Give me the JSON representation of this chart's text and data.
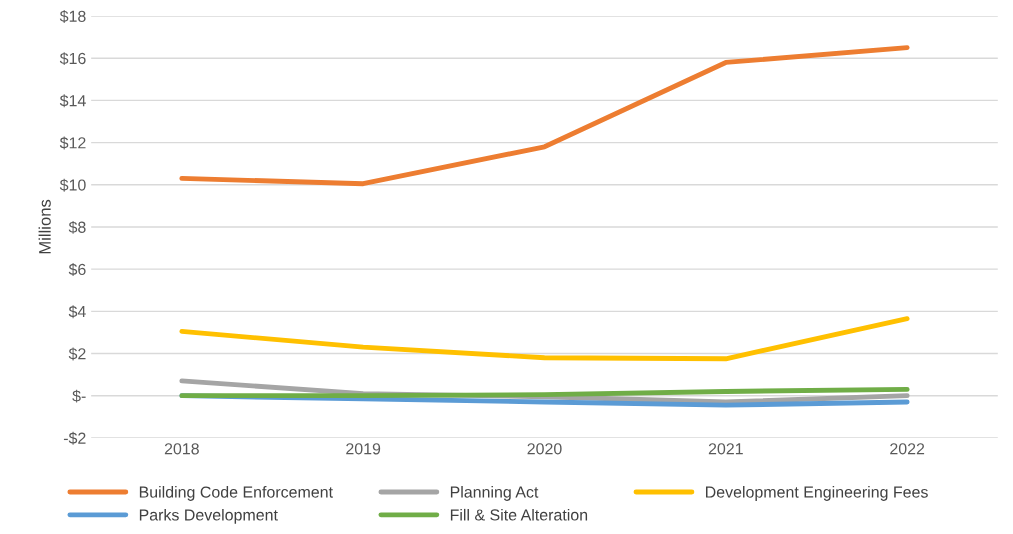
{
  "chart_data": {
    "type": "line",
    "ylabel": "Millions",
    "categories": [
      "2018",
      "2019",
      "2020",
      "2021",
      "2022"
    ],
    "series": [
      {
        "name": "Building Code Enforcement",
        "color": "#ed7d31",
        "values": [
          10.3,
          10.05,
          11.8,
          15.8,
          16.5
        ]
      },
      {
        "name": "Planning Act",
        "color": "#a5a5a5",
        "values": [
          0.7,
          0.1,
          -0.05,
          -0.3,
          0.0
        ]
      },
      {
        "name": "Development Engineering Fees",
        "color": "#ffc000",
        "values": [
          3.05,
          2.3,
          1.8,
          1.75,
          3.65
        ]
      },
      {
        "name": "Parks Development",
        "color": "#5b9bd5",
        "values": [
          0.0,
          -0.15,
          -0.3,
          -0.45,
          -0.3
        ]
      },
      {
        "name": "Fill & Site Alteration",
        "color": "#70ad47",
        "values": [
          0.0,
          0.0,
          0.05,
          0.2,
          0.3
        ]
      }
    ],
    "ylim": [
      -2,
      18
    ],
    "yticks": [
      {
        "value": -2,
        "label": "-$2"
      },
      {
        "value": 0,
        "label": "$-"
      },
      {
        "value": 2,
        "label": "$2"
      },
      {
        "value": 4,
        "label": "$4"
      },
      {
        "value": 6,
        "label": "$6"
      },
      {
        "value": 8,
        "label": "$8"
      },
      {
        "value": 10,
        "label": "$10"
      },
      {
        "value": 12,
        "label": "$12"
      },
      {
        "value": 14,
        "label": "$14"
      },
      {
        "value": 16,
        "label": "$16"
      },
      {
        "value": 18,
        "label": "$18"
      }
    ],
    "grid": "y",
    "legend": "bottom",
    "marker": "none",
    "line_style": "solid"
  }
}
